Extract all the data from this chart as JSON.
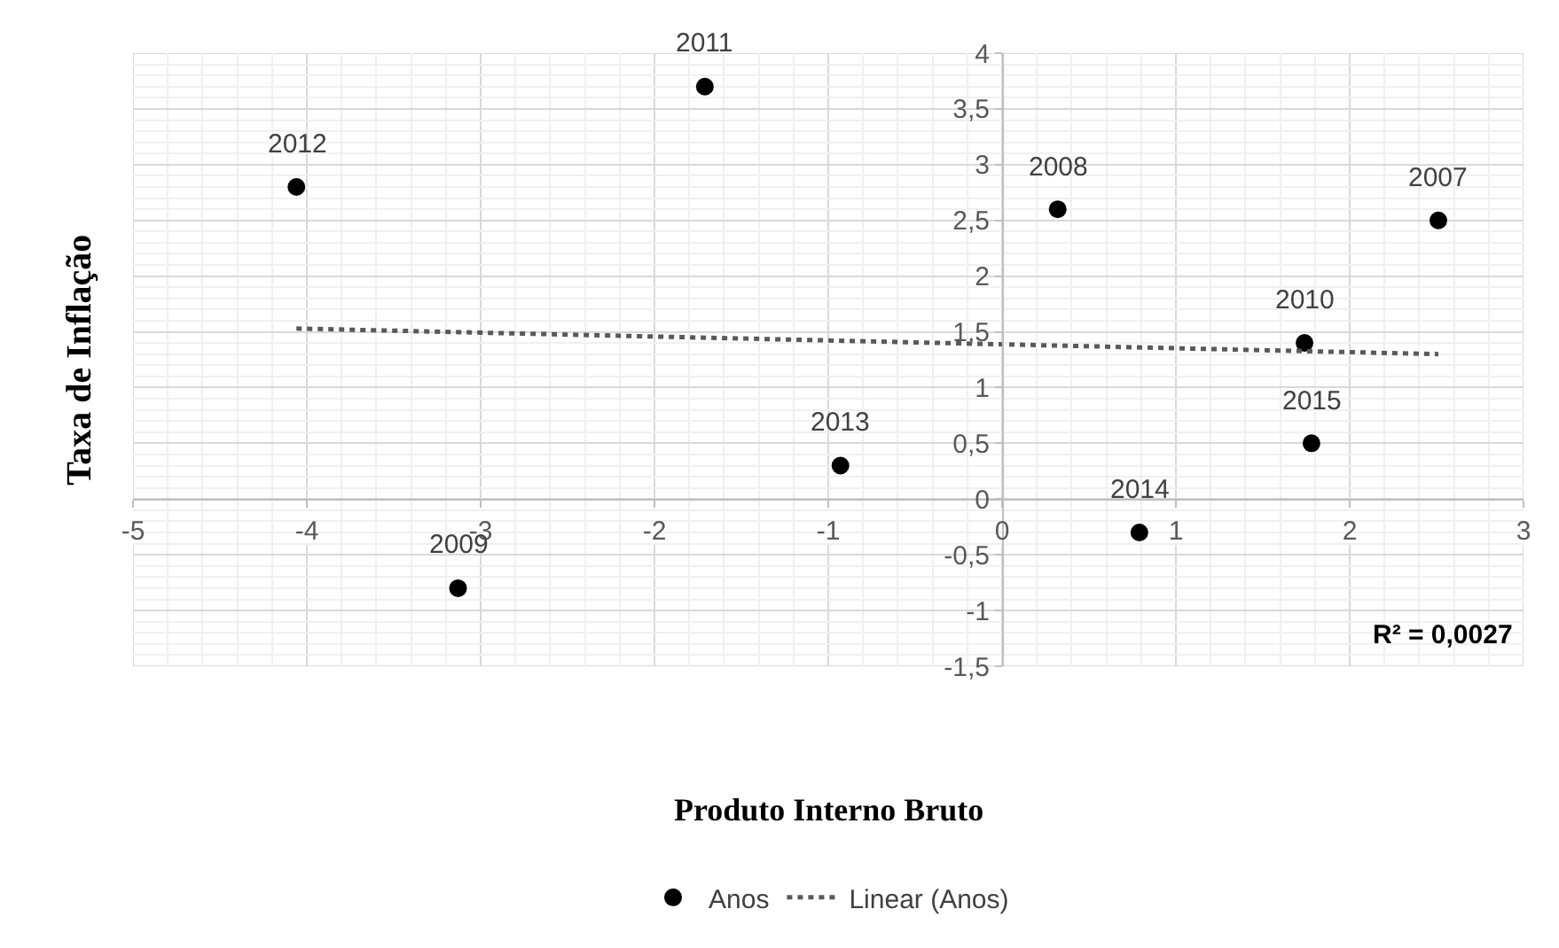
{
  "chart_data": {
    "type": "scatter",
    "xlabel": "Produto Interno Bruto",
    "ylabel": "Taxa de Inflação",
    "series": [
      {
        "name": "Anos",
        "color": "#000000",
        "marker": "circle",
        "x": [
          2.51,
          0.32,
          -3.13,
          1.74,
          -1.71,
          -4.06,
          -0.93,
          0.79,
          1.78
        ],
        "values": [
          2.5,
          2.6,
          -0.8,
          1.4,
          3.7,
          2.8,
          0.3,
          -0.3,
          0.5
        ]
      },
      {
        "name": "Linear (Anos)",
        "type": "line",
        "color": "#595959",
        "marker": "none",
        "line_style": "dotted",
        "x": [
          -4.06,
          2.51
        ],
        "values": [
          1.53,
          1.3
        ]
      }
    ],
    "annotations": [
      {
        "text": "2007",
        "x": 2.51,
        "y": 2.5
      },
      {
        "text": "2008",
        "x": 0.32,
        "y": 2.6
      },
      {
        "text": "2009",
        "x": -3.13,
        "y": -0.8
      },
      {
        "text": "2010",
        "x": 1.74,
        "y": 1.4
      },
      {
        "text": "2011",
        "x": -1.71,
        "y": 3.7
      },
      {
        "text": "2012",
        "x": -4.06,
        "y": 2.8
      },
      {
        "text": "2013",
        "x": -0.93,
        "y": 0.3
      },
      {
        "text": "2014",
        "x": 0.79,
        "y": -0.3
      },
      {
        "text": "2015",
        "x": 1.78,
        "y": 0.5
      },
      "R² = 0,0027"
    ],
    "xlim": [
      -5,
      3
    ],
    "xticks": [
      -5,
      -4,
      -3,
      -2,
      -1,
      0,
      1,
      2,
      3
    ],
    "ylim": [
      -1.5,
      4
    ],
    "yticks": [
      {
        "value": -1.5,
        "label": "-1,5"
      },
      -1,
      {
        "value": -0.5,
        "label": "-0,5"
      },
      0,
      {
        "value": 0.5,
        "label": "0,5"
      },
      1,
      {
        "value": 1.5,
        "label": "1,5"
      },
      2,
      {
        "value": 2.5,
        "label": "2,5"
      },
      3,
      {
        "value": 3.5,
        "label": "3,5"
      },
      4
    ],
    "grid": true,
    "legend": "bottom"
  }
}
